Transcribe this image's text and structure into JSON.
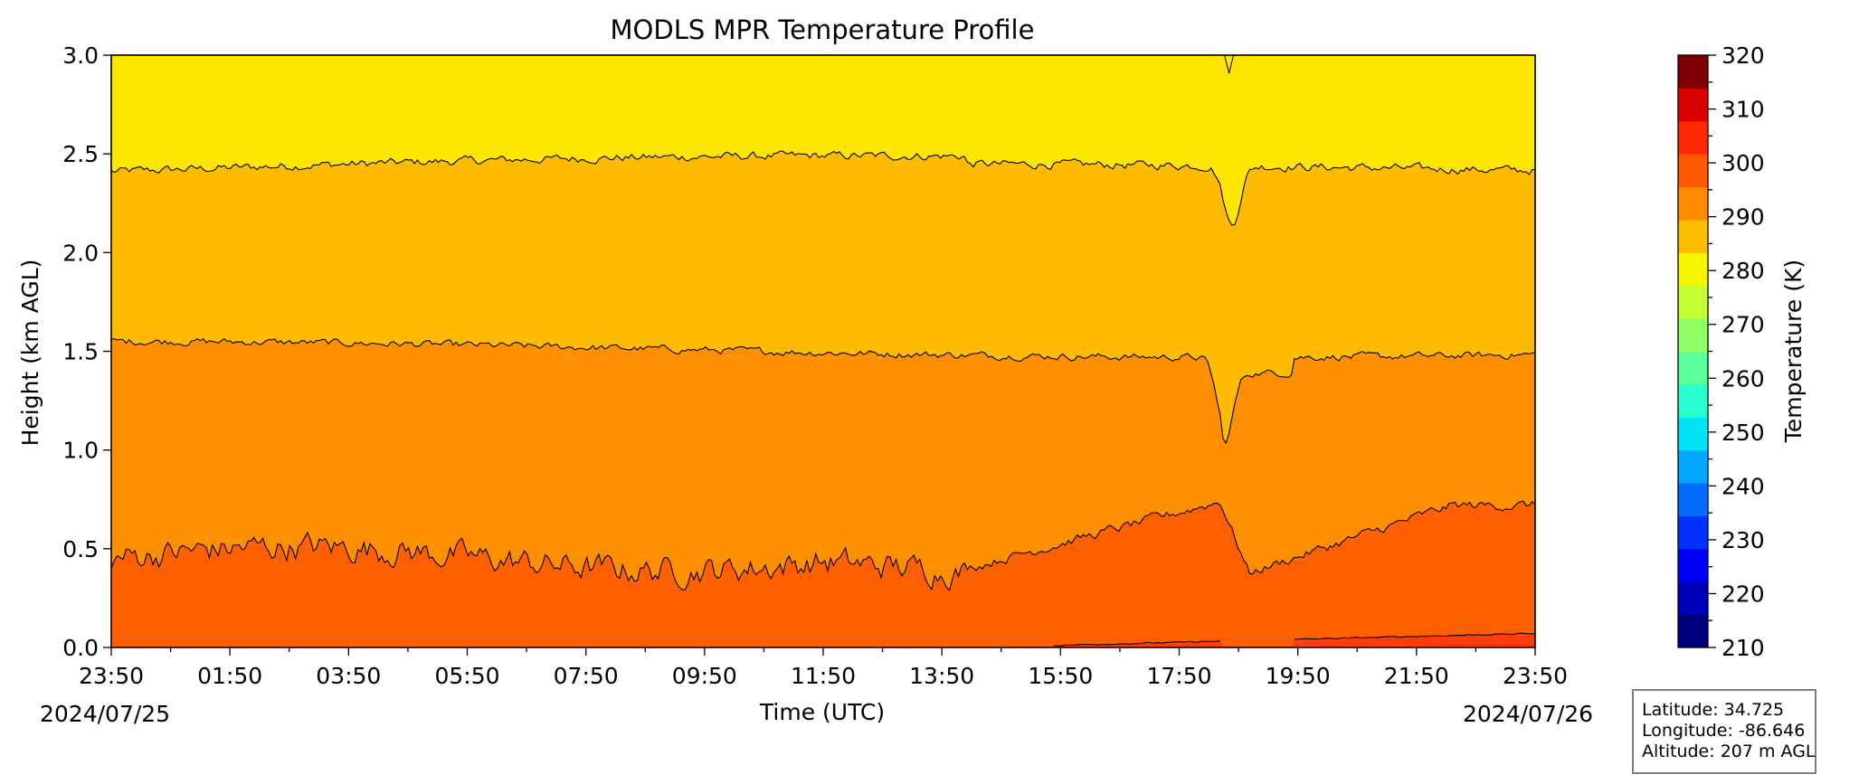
{
  "chart_data": {
    "type": "heatmap",
    "subtype": "filled-contour",
    "title": "MODLS MPR Temperature Profile",
    "xlabel": "Time (UTC)",
    "ylabel": "Height (km AGL)",
    "x_tick_labels": [
      "23:50",
      "01:50",
      "03:50",
      "05:50",
      "07:50",
      "09:50",
      "11:50",
      "13:50",
      "15:50",
      "17:50",
      "19:50",
      "21:50",
      "23:50"
    ],
    "x_start_date": "2024/07/25",
    "x_end_date": "2024/07/26",
    "x_range": [
      "2024-07-25 23:50",
      "2024-07-26 23:50"
    ],
    "ylim": [
      0.0,
      3.0
    ],
    "y_ticks": [
      0.0,
      0.5,
      1.0,
      1.5,
      2.0,
      2.5,
      3.0
    ],
    "colorbar": {
      "label": "Temperature (K)",
      "range": [
        210,
        320
      ],
      "ticks": [
        210,
        220,
        230,
        240,
        250,
        260,
        270,
        280,
        290,
        300,
        310,
        320
      ],
      "step": 5,
      "colors": [
        "#00007f",
        "#0000bb",
        "#0000f6",
        "#0031ff",
        "#006dff",
        "#00a8ff",
        "#00e4f7",
        "#29ffce",
        "#5cff9a",
        "#90ff66",
        "#c4ff33",
        "#f8f500",
        "#ffbd00",
        "#ff8b00",
        "#ff5a00",
        "#ff2800",
        "#d80000",
        "#7f0000"
      ]
    },
    "contour_levels": [
      {
        "value": 280,
        "mean_height_km": 2.41,
        "min_height_km": 2.05,
        "max_height_km": 2.54,
        "color": "#ffe600"
      },
      {
        "value": 285,
        "mean_height_km": 1.51,
        "min_height_km": 1.17,
        "max_height_km": 1.62,
        "color": "#ffbb00"
      },
      {
        "value": 290,
        "mean_height_km": 0.5,
        "min_height_km": 0.29,
        "max_height_km": 0.76,
        "color": "#fe8f01"
      },
      {
        "value": 295,
        "mean_height_km": 0.04,
        "min_height_km": 0.0,
        "max_height_km": 0.1,
        "color": "#fe5f01"
      },
      {
        "value": 300,
        "color": "#ff3c0a"
      }
    ],
    "grid": false
  },
  "info": {
    "latitude": "Latitude: 34.725",
    "longitude": "Longitude: -86.646",
    "altitude": "Altitude: 207 m AGL"
  }
}
